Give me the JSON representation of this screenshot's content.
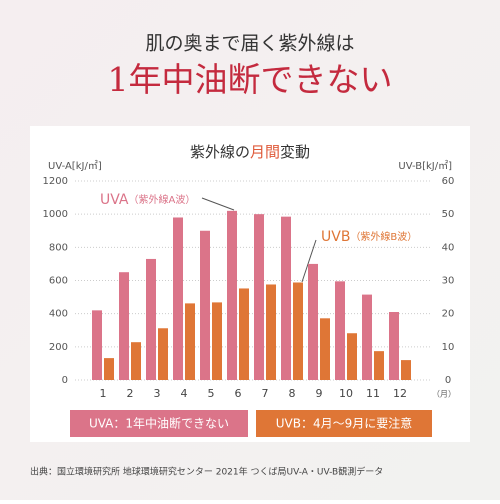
{
  "header": {
    "line1": "肌の奥まで届く紫外線は",
    "line2": "1年中油断できない"
  },
  "chart_data": {
    "type": "bar",
    "title_parts": [
      "紫外線の",
      "月間",
      "変動"
    ],
    "y_label": "UV-A[kJ/㎡]",
    "y2_label": "UV-B[kJ/㎡]",
    "x_unit": "（月）",
    "categories": [
      "1",
      "2",
      "3",
      "4",
      "5",
      "6",
      "7",
      "8",
      "9",
      "10",
      "11",
      "12"
    ],
    "series": [
      {
        "name": "UVA",
        "note": "（紫外線A波）",
        "color": "#db7489",
        "values": [
          420,
          650,
          730,
          980,
          900,
          1020,
          1000,
          985,
          700,
          595,
          515,
          410
        ]
      },
      {
        "name": "UVB",
        "note": "（紫外線B波）",
        "color": "#df7636",
        "axis": "y2",
        "values": [
          6.6,
          11.4,
          15.6,
          23.1,
          23.4,
          27.6,
          28.8,
          29.4,
          18.6,
          14.1,
          8.7,
          6
        ]
      }
    ],
    "ylim": [
      0,
      1200
    ],
    "yticks": [
      0,
      200,
      400,
      600,
      800,
      1000,
      1200
    ],
    "y2lim": [
      0,
      60
    ],
    "y2ticks": [
      0,
      10,
      20,
      30,
      40,
      50,
      60
    ],
    "grid": true
  },
  "notes": [
    "UVA：1年中油断できない",
    "UVB：4月～9月に要注意"
  ],
  "source": "出典：国立環境研究所 地球環境研究センター 2021年 つくば局UV-A・UV-B観測データ"
}
